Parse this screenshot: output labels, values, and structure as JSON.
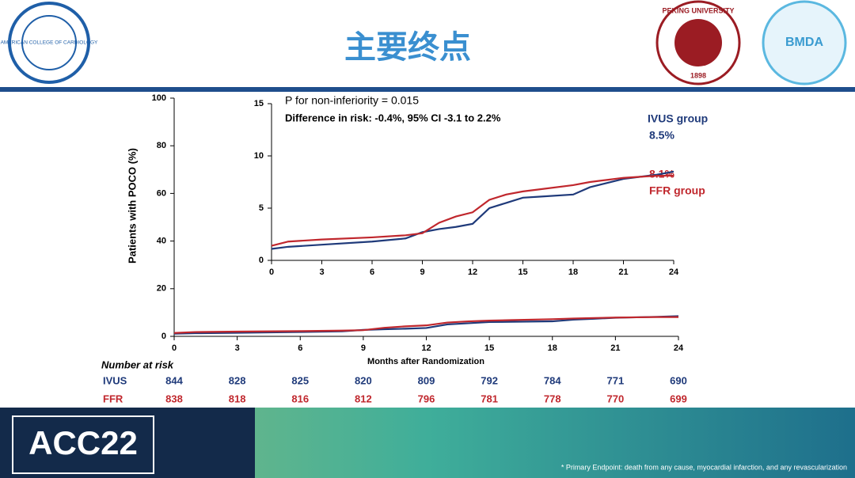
{
  "header": {
    "title": "主要终点",
    "logo_left": "AMERICAN COLLEGE OF CARDIOLOGY",
    "logo_mid": "PEKING UNIVERSITY",
    "logo_mid_year": "1898",
    "logo_right": "BMDA"
  },
  "chart_data": [
    {
      "type": "line",
      "ylabel": "Patients with POCO (%)",
      "xlabel": "Months after Randomization",
      "xlim": [
        0,
        24
      ],
      "ylim": [
        0,
        100
      ],
      "xticks": [
        0,
        3,
        6,
        9,
        12,
        15,
        18,
        21,
        24
      ],
      "yticks": [
        0,
        20,
        40,
        60,
        80,
        100
      ],
      "x": [
        0,
        1,
        3,
        6,
        8,
        9,
        10,
        11,
        12,
        13,
        14,
        15,
        16,
        18,
        19,
        20,
        21,
        22,
        23,
        24
      ],
      "series": [
        {
          "color": "#1f3a7a",
          "values": [
            1.1,
            1.3,
            1.5,
            1.8,
            2.1,
            2.7,
            3.0,
            3.2,
            3.5,
            5.0,
            5.5,
            6.0,
            6.1,
            6.3,
            7.0,
            7.4,
            7.8,
            8.0,
            8.2,
            8.5
          ]
        },
        {
          "color": "#c0272d",
          "values": [
            1.4,
            1.8,
            2.0,
            2.2,
            2.4,
            2.6,
            3.6,
            4.2,
            4.6,
            5.8,
            6.3,
            6.6,
            6.8,
            7.2,
            7.5,
            7.7,
            7.9,
            8.0,
            8.1,
            8.1
          ]
        }
      ]
    },
    {
      "type": "line",
      "annotations": [
        "P for non-inferiority = 0.015",
        "Difference in risk: -0.4%, 95% CI -3.1 to 2.2%",
        "8.5%",
        "8.1%"
      ],
      "xlim": [
        0,
        24
      ],
      "ylim": [
        0,
        15
      ],
      "xticks": [
        0,
        3,
        6,
        9,
        12,
        15,
        18,
        21,
        24
      ],
      "yticks": [
        0,
        5,
        10,
        15
      ],
      "x": [
        0,
        1,
        3,
        6,
        8,
        9,
        10,
        11,
        12,
        13,
        14,
        15,
        16,
        18,
        19,
        20,
        21,
        22,
        23,
        24
      ],
      "series": [
        {
          "name": "IVUS group",
          "color": "#1f3a7a",
          "values": [
            1.1,
            1.3,
            1.5,
            1.8,
            2.1,
            2.7,
            3.0,
            3.2,
            3.5,
            5.0,
            5.5,
            6.0,
            6.1,
            6.3,
            7.0,
            7.4,
            7.8,
            8.0,
            8.2,
            8.5
          ]
        },
        {
          "name": "FFR group",
          "color": "#c0272d",
          "values": [
            1.4,
            1.8,
            2.0,
            2.2,
            2.4,
            2.6,
            3.6,
            4.2,
            4.6,
            5.8,
            6.3,
            6.6,
            6.8,
            7.2,
            7.5,
            7.7,
            7.9,
            8.0,
            8.1,
            8.1
          ]
        }
      ]
    }
  ],
  "risk_table": {
    "title": "Number at risk",
    "groups": [
      {
        "name": "IVUS",
        "color": "#1f3a7a",
        "values": [
          844,
          828,
          825,
          820,
          809,
          792,
          784,
          771,
          690
        ]
      },
      {
        "name": "FFR",
        "color": "#c0272d",
        "values": [
          838,
          818,
          816,
          812,
          796,
          781,
          778,
          770,
          699
        ]
      }
    ]
  },
  "footer": {
    "brand": "ACC22",
    "footnote": "* Primary Endpoint: death from any cause, myocardial infarction, and any revascularization"
  }
}
